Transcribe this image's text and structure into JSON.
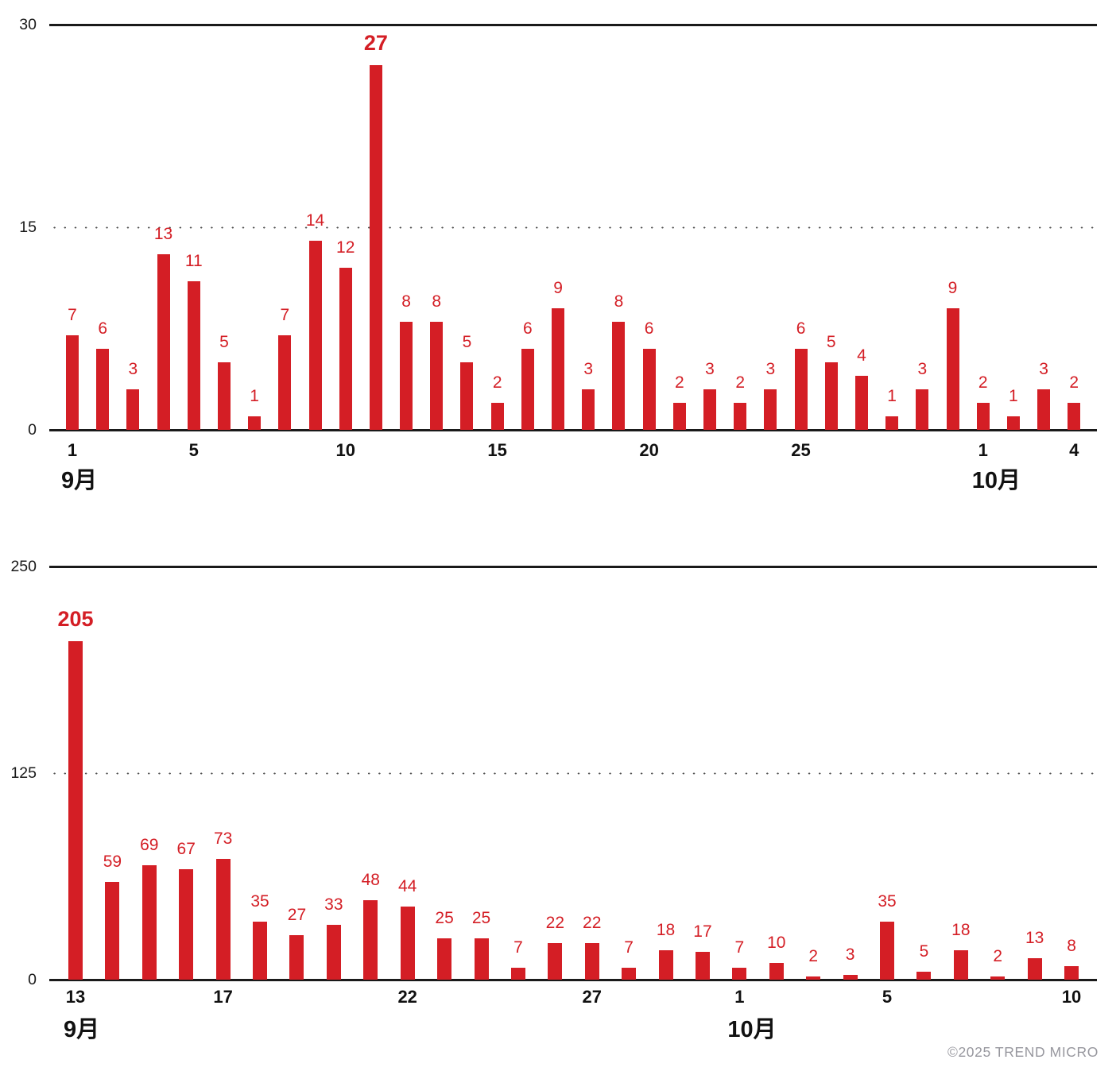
{
  "copyright": "©2025 TREND MICRO",
  "colors": {
    "bar": "#d41e25",
    "value_label": "#d41e25",
    "axis": "#1a1a1a",
    "tick_label": "#111111",
    "grid_dot": "#515151",
    "copyright_gray": "#97979e",
    "background": "#ffffff"
  },
  "chart_data": [
    {
      "type": "bar",
      "title": "",
      "xlabel": "",
      "ylabel": "",
      "ylim": [
        0,
        30
      ],
      "yticks": [
        "0",
        "15",
        "30"
      ],
      "grid": "dotted gridline at 15, solid line at 30, solid baseline at 0",
      "legend": "none",
      "values": [
        7,
        6,
        3,
        13,
        11,
        5,
        1,
        7,
        14,
        12,
        27,
        8,
        8,
        5,
        2,
        6,
        9,
        3,
        8,
        6,
        2,
        3,
        2,
        3,
        6,
        5,
        4,
        1,
        3,
        9,
        2,
        1,
        3,
        2
      ],
      "highlight_index": 10,
      "highlight_value_label": "27",
      "xticks": [
        {
          "index": 0,
          "label": "1"
        },
        {
          "index": 4,
          "label": "5"
        },
        {
          "index": 9,
          "label": "10"
        },
        {
          "index": 14,
          "label": "15"
        },
        {
          "index": 19,
          "label": "20"
        },
        {
          "index": 24,
          "label": "25"
        },
        {
          "index": 30,
          "label": "1"
        },
        {
          "index": 33,
          "label": "4"
        }
      ],
      "month_labels": [
        {
          "index": 0,
          "label": "9月"
        },
        {
          "index": 30,
          "label": "10月"
        }
      ]
    },
    {
      "type": "bar",
      "title": "",
      "xlabel": "",
      "ylabel": "",
      "ylim": [
        0,
        250
      ],
      "yticks": [
        "0",
        "125",
        "250"
      ],
      "grid": "dotted gridline at 125, solid line at 250, solid baseline at 0",
      "legend": "none",
      "values": [
        205,
        59,
        69,
        67,
        73,
        35,
        27,
        33,
        48,
        44,
        25,
        25,
        7,
        22,
        22,
        7,
        18,
        17,
        7,
        10,
        2,
        3,
        35,
        5,
        18,
        2,
        13,
        8
      ],
      "highlight_index": 0,
      "highlight_value_label": "205",
      "xticks": [
        {
          "index": 0,
          "label": "13"
        },
        {
          "index": 4,
          "label": "17"
        },
        {
          "index": 9,
          "label": "22"
        },
        {
          "index": 14,
          "label": "27"
        },
        {
          "index": 18,
          "label": "1"
        },
        {
          "index": 22,
          "label": "5"
        },
        {
          "index": 27,
          "label": "10"
        }
      ],
      "month_labels": [
        {
          "index": 0,
          "label": "9月"
        },
        {
          "index": 18,
          "label": "10月"
        }
      ]
    }
  ]
}
